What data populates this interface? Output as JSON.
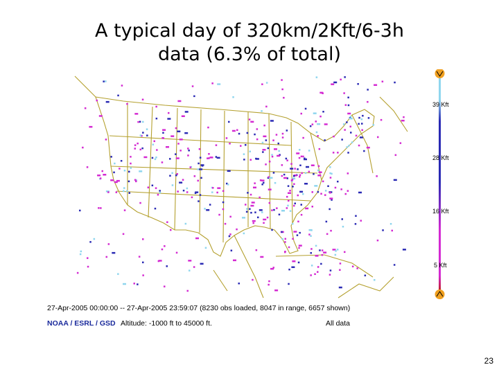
{
  "slide": {
    "title_line1": "A typical day of 320km/2Kft/6-3h",
    "title_line2": "data (6.3% of total)",
    "page_number": "23"
  },
  "map": {
    "region": "North America (contiguous United States)",
    "caption_range": "27-Apr-2005 00:00:00 -- 27-Apr-2005 23:59:07 (8230 obs loaded, 8047 in range, 6657 shown)",
    "org": "NOAA / ESRL / GSD",
    "altitude": "Altitude: -1000 ft to 45000 ft.",
    "filter": "All data",
    "colors": {
      "low": "#e8ec2a",
      "mid": "#d42ad2",
      "high": "#2a2ab4",
      "top": "#8fd6ee",
      "outline": "#b4a02e"
    }
  },
  "legend": {
    "labels": [
      "39 Kft",
      "28 Kft",
      "16 Kft",
      "5 Kft"
    ]
  }
}
